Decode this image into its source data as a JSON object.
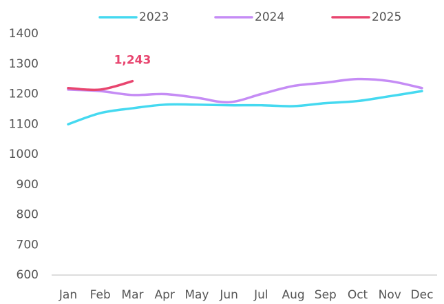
{
  "chart_data": {
    "type": "line",
    "categories": [
      "Jan",
      "Feb",
      "Mar",
      "Apr",
      "May",
      "Jun",
      "Jul",
      "Aug",
      "Sep",
      "Oct",
      "Nov",
      "Dec"
    ],
    "series": [
      {
        "name": "2023",
        "color": "#45d9f0",
        "values": [
          1100,
          1137,
          1153,
          1165,
          1165,
          1163,
          1163,
          1160,
          1170,
          1177,
          1193,
          1210
        ]
      },
      {
        "name": "2024",
        "color": "#c58cf5",
        "values": [
          1215,
          1210,
          1197,
          1200,
          1188,
          1173,
          1200,
          1227,
          1238,
          1250,
          1243,
          1220
        ]
      },
      {
        "name": "2025",
        "color": "#e8456f",
        "values": [
          1220,
          1215,
          1243,
          null,
          null,
          null,
          null,
          null,
          null,
          null,
          null,
          null
        ],
        "value_labels": [
          null,
          null,
          "1,243",
          null,
          null,
          null,
          null,
          null,
          null,
          null,
          null,
          null
        ]
      }
    ],
    "ylim": [
      600,
      1400
    ],
    "yticks": [
      600,
      700,
      800,
      900,
      1000,
      1100,
      1200,
      1300,
      1400
    ],
    "grid": false,
    "legend": "top"
  }
}
